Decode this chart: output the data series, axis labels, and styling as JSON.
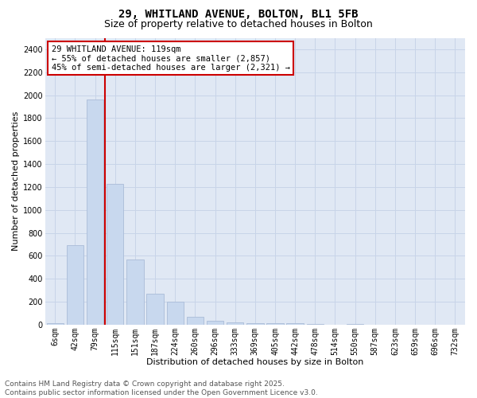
{
  "title_line1": "29, WHITLAND AVENUE, BOLTON, BL1 5FB",
  "title_line2": "Size of property relative to detached houses in Bolton",
  "xlabel": "Distribution of detached houses by size in Bolton",
  "ylabel": "Number of detached properties",
  "categories": [
    "6sqm",
    "42sqm",
    "79sqm",
    "115sqm",
    "151sqm",
    "187sqm",
    "224sqm",
    "260sqm",
    "296sqm",
    "333sqm",
    "369sqm",
    "405sqm",
    "442sqm",
    "478sqm",
    "514sqm",
    "550sqm",
    "587sqm",
    "623sqm",
    "659sqm",
    "696sqm",
    "732sqm"
  ],
  "values": [
    15,
    690,
    1960,
    1230,
    570,
    270,
    200,
    70,
    35,
    20,
    15,
    10,
    10,
    5,
    2,
    5,
    2,
    2,
    2,
    2,
    2
  ],
  "bar_color": "#c8d8ee",
  "bar_edge_color": "#aabcd8",
  "vline_color": "#cc0000",
  "vline_position": 2.5,
  "annotation_text": "29 WHITLAND AVENUE: 119sqm\n← 55% of detached houses are smaller (2,857)\n45% of semi-detached houses are larger (2,321) →",
  "annotation_box_facecolor": "#ffffff",
  "annotation_box_edgecolor": "#cc0000",
  "ylim": [
    0,
    2500
  ],
  "yticks": [
    0,
    200,
    400,
    600,
    800,
    1000,
    1200,
    1400,
    1600,
    1800,
    2000,
    2200,
    2400
  ],
  "grid_color": "#c8d4e8",
  "plot_bg_color": "#e0e8f4",
  "footer_text": "Contains HM Land Registry data © Crown copyright and database right 2025.\nContains public sector information licensed under the Open Government Licence v3.0.",
  "title_fontsize": 10,
  "subtitle_fontsize": 9,
  "axis_label_fontsize": 8,
  "tick_fontsize": 7,
  "annotation_fontsize": 7.5,
  "footer_fontsize": 6.5
}
